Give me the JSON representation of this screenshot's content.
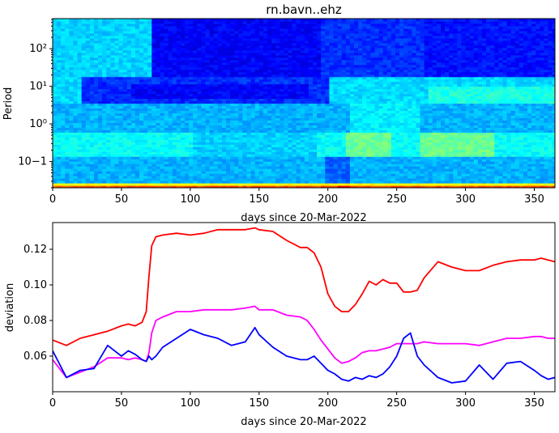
{
  "chart_data": [
    {
      "type": "heatmap",
      "title": "rn.bavn..ehz",
      "xlabel": "days since 20-Mar-2022",
      "ylabel": "Period",
      "x_ticks": [
        "0",
        "50",
        "100",
        "150",
        "200",
        "250",
        "300",
        "350"
      ],
      "x_tick_values": [
        0,
        50,
        100,
        150,
        200,
        250,
        300,
        350
      ],
      "y_scale": "log",
      "y_ticks": [
        "10−1",
        "10⁰",
        "10¹",
        "10²"
      ],
      "y_tick_values": [
        0.1,
        1,
        10,
        100
      ],
      "xlim": [
        0,
        365
      ],
      "ylim": [
        0.02,
        630
      ],
      "colormap": "jet",
      "grid": false
    },
    {
      "type": "line",
      "title": "",
      "xlabel": "days since 20-Mar-2022",
      "ylabel": "deviation",
      "xlim": [
        0,
        365
      ],
      "ylim": [
        0.04,
        0.135
      ],
      "x_ticks": [
        "0",
        "50",
        "100",
        "150",
        "200",
        "250",
        "300",
        "350"
      ],
      "x_tick_values": [
        0,
        50,
        100,
        150,
        200,
        250,
        300,
        350
      ],
      "y_ticks": [
        "0.06",
        "0.08",
        "0.10",
        "0.12"
      ],
      "y_tick_values": [
        0.06,
        0.08,
        0.1,
        0.12
      ],
      "grid": false,
      "x": [
        0,
        10,
        20,
        30,
        40,
        50,
        55,
        60,
        65,
        68,
        70,
        72,
        75,
        80,
        90,
        100,
        110,
        120,
        130,
        140,
        147,
        150,
        160,
        170,
        180,
        185,
        190,
        195,
        200,
        205,
        210,
        215,
        220,
        225,
        230,
        235,
        240,
        245,
        250,
        255,
        260,
        265,
        270,
        280,
        290,
        300,
        310,
        320,
        330,
        340,
        350,
        355,
        360,
        365
      ],
      "series": [
        {
          "color": "#ff0000",
          "values": [
            0.069,
            0.066,
            0.07,
            0.072,
            0.074,
            0.077,
            0.078,
            0.077,
            0.079,
            0.085,
            0.105,
            0.122,
            0.127,
            0.128,
            0.129,
            0.128,
            0.129,
            0.131,
            0.131,
            0.131,
            0.132,
            0.131,
            0.13,
            0.125,
            0.121,
            0.121,
            0.118,
            0.11,
            0.095,
            0.088,
            0.085,
            0.085,
            0.089,
            0.095,
            0.102,
            0.1,
            0.103,
            0.101,
            0.101,
            0.096,
            0.096,
            0.097,
            0.104,
            0.113,
            0.11,
            0.108,
            0.108,
            0.111,
            0.113,
            0.114,
            0.114,
            0.115,
            0.114,
            0.113
          ]
        },
        {
          "color": "#ff00ff",
          "values": [
            0.058,
            0.048,
            0.051,
            0.054,
            0.059,
            0.059,
            0.058,
            0.059,
            0.058,
            0.057,
            0.062,
            0.073,
            0.08,
            0.082,
            0.085,
            0.085,
            0.086,
            0.086,
            0.086,
            0.087,
            0.088,
            0.086,
            0.086,
            0.083,
            0.082,
            0.08,
            0.075,
            0.069,
            0.064,
            0.059,
            0.056,
            0.057,
            0.059,
            0.062,
            0.063,
            0.063,
            0.064,
            0.065,
            0.067,
            0.067,
            0.067,
            0.067,
            0.068,
            0.067,
            0.067,
            0.067,
            0.066,
            0.068,
            0.07,
            0.07,
            0.071,
            0.071,
            0.07,
            0.07
          ]
        },
        {
          "color": "#0000ff",
          "values": [
            0.063,
            0.048,
            0.052,
            0.053,
            0.066,
            0.06,
            0.063,
            0.061,
            0.058,
            0.057,
            0.06,
            0.058,
            0.06,
            0.065,
            0.07,
            0.075,
            0.072,
            0.07,
            0.066,
            0.068,
            0.076,
            0.072,
            0.065,
            0.06,
            0.058,
            0.058,
            0.06,
            0.056,
            0.052,
            0.05,
            0.047,
            0.046,
            0.048,
            0.047,
            0.049,
            0.048,
            0.05,
            0.054,
            0.06,
            0.07,
            0.073,
            0.06,
            0.055,
            0.048,
            0.045,
            0.046,
            0.055,
            0.047,
            0.056,
            0.057,
            0.052,
            0.049,
            0.047,
            0.048
          ]
        }
      ]
    }
  ]
}
